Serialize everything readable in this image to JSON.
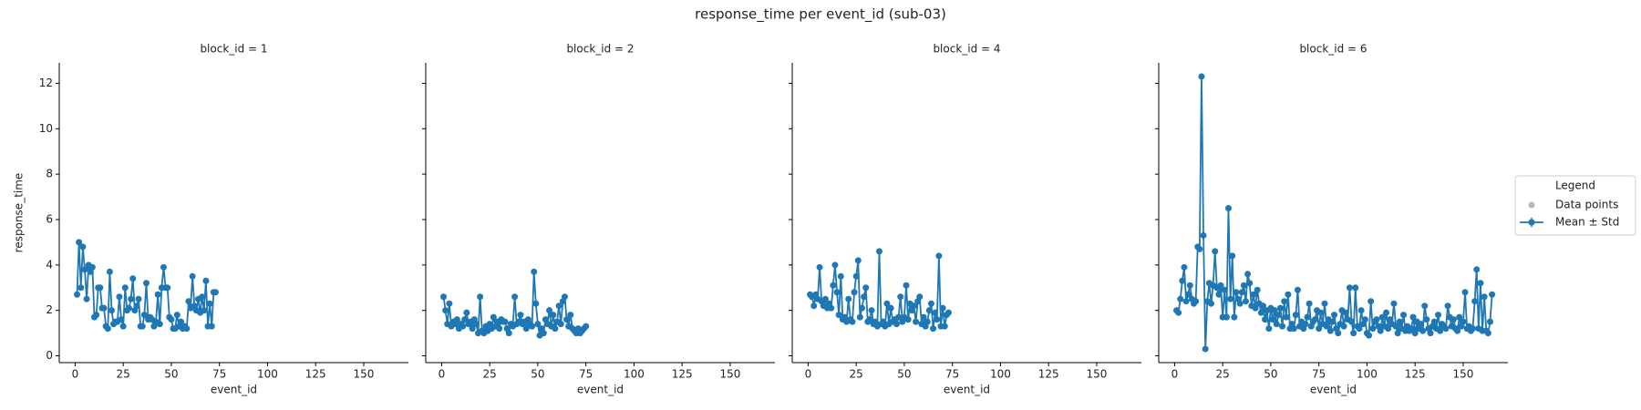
{
  "title": "response_time per event_id (sub-03)",
  "legend": {
    "title": "Legend",
    "entries": [
      {
        "name": "Data points",
        "color": "#bbbbbb"
      },
      {
        "name": "Mean ± Std",
        "color": "#1f77b4"
      }
    ]
  },
  "chart_data": [
    {
      "type": "line",
      "title": "block_id = 1",
      "x_label": "event_id",
      "y_label": "response_time",
      "x": [
        1,
        2,
        3,
        4,
        5,
        6,
        7,
        8,
        9,
        10,
        11,
        12,
        13,
        14,
        15,
        16,
        17,
        18,
        19,
        20,
        21,
        22,
        23,
        24,
        25,
        26,
        27,
        28,
        29,
        30,
        31,
        32,
        33,
        34,
        35,
        36,
        37,
        38,
        39,
        40,
        41,
        42,
        43,
        44,
        45,
        46,
        47,
        48,
        49,
        50,
        51,
        52,
        53,
        54,
        55,
        56,
        57,
        58,
        59,
        60,
        61,
        62,
        63,
        64,
        65,
        66,
        67,
        68,
        69,
        70,
        71,
        72,
        73
      ],
      "series": [
        {
          "name": "Mean ± Std",
          "color": "#1f77b4",
          "values": [
            2.7,
            5.0,
            3.0,
            4.8,
            3.8,
            2.5,
            4.0,
            3.7,
            3.9,
            1.7,
            1.8,
            3.0,
            3.0,
            2.1,
            2.1,
            1.3,
            1.2,
            3.7,
            2.0,
            1.4,
            1.5,
            1.5,
            2.6,
            1.6,
            1.3,
            3.0,
            2.0,
            2.1,
            2.5,
            3.4,
            2.0,
            2.2,
            2.5,
            1.3,
            1.3,
            1.8,
            3.2,
            1.6,
            1.7,
            1.6,
            1.3,
            1.5,
            2.7,
            1.4,
            3.0,
            3.9,
            3.0,
            3.0,
            1.7,
            1.6,
            1.2,
            1.2,
            1.8,
            1.3,
            1.5,
            1.2,
            1.3,
            1.2,
            2.4,
            2.1,
            3.5,
            2.2,
            2.0,
            2.5,
            1.9,
            2.6,
            2.0,
            3.3,
            1.3,
            2.3,
            1.3,
            2.8,
            2.8
          ]
        }
      ],
      "xlim": [
        -8.25,
        173.25
      ],
      "xticks": [
        0,
        25,
        50,
        75,
        100,
        125,
        150
      ],
      "ylim": [
        -0.3,
        12.9
      ],
      "yticks": [
        0,
        2,
        4,
        6,
        8,
        10,
        12
      ]
    },
    {
      "type": "line",
      "title": "block_id = 2",
      "x_label": "event_id",
      "x": [
        1,
        2,
        3,
        4,
        5,
        6,
        7,
        8,
        9,
        10,
        11,
        12,
        13,
        14,
        15,
        16,
        17,
        18,
        19,
        20,
        21,
        22,
        23,
        24,
        25,
        26,
        27,
        28,
        29,
        30,
        31,
        32,
        33,
        34,
        35,
        36,
        37,
        38,
        39,
        40,
        41,
        42,
        43,
        44,
        45,
        46,
        47,
        48,
        49,
        50,
        51,
        52,
        53,
        54,
        55,
        56,
        57,
        58,
        59,
        60,
        61,
        62,
        63,
        64,
        65,
        66,
        67,
        68,
        69,
        70,
        71,
        72,
        73,
        74,
        75
      ],
      "series": [
        {
          "name": "Mean ± Std",
          "color": "#1f77b4",
          "values": [
            2.6,
            2.0,
            1.4,
            2.3,
            1.3,
            1.5,
            1.4,
            1.6,
            1.2,
            1.4,
            1.3,
            1.6,
            1.9,
            1.4,
            1.5,
            1.2,
            1.6,
            1.4,
            1.0,
            2.6,
            1.1,
            1.0,
            1.3,
            1.1,
            1.4,
            1.2,
            1.7,
            1.3,
            1.5,
            1.2,
            1.6,
            1.5,
            1.5,
            1.2,
            1.0,
            1.4,
            1.3,
            2.6,
            1.4,
            1.5,
            1.8,
            1.4,
            1.5,
            1.2,
            1.6,
            1.4,
            1.3,
            3.7,
            2.3,
            1.4,
            0.9,
            1.2,
            1.0,
            1.6,
            1.4,
            2.0,
            1.3,
            1.8,
            1.2,
            1.5,
            2.2,
            1.4,
            2.4,
            2.6,
            1.6,
            1.3,
            1.8,
            1.2,
            1.1,
            1.0,
            1.2,
            1.0,
            1.1,
            1.2,
            1.3
          ]
        }
      ],
      "xlim": [
        -8.25,
        173.25
      ],
      "xticks": [
        0,
        25,
        50,
        75,
        100,
        125,
        150
      ],
      "ylim": [
        -0.3,
        12.9
      ],
      "yticks": [
        0,
        2,
        4,
        6,
        8,
        10,
        12
      ]
    },
    {
      "type": "line",
      "title": "block_id = 4",
      "x_label": "event_id",
      "x": [
        1,
        2,
        3,
        4,
        5,
        6,
        7,
        8,
        9,
        10,
        11,
        12,
        13,
        14,
        15,
        16,
        17,
        18,
        19,
        20,
        21,
        22,
        23,
        24,
        25,
        26,
        27,
        28,
        29,
        30,
        31,
        32,
        33,
        34,
        35,
        36,
        37,
        38,
        39,
        40,
        41,
        42,
        43,
        44,
        45,
        46,
        47,
        48,
        49,
        50,
        51,
        52,
        53,
        54,
        55,
        56,
        57,
        58,
        59,
        60,
        61,
        62,
        63,
        64,
        65,
        66,
        67,
        68,
        69,
        70,
        71,
        72,
        73
      ],
      "series": [
        {
          "name": "Mean ± Std",
          "color": "#1f77b4",
          "values": [
            2.7,
            2.6,
            2.2,
            2.7,
            2.5,
            3.9,
            2.4,
            2.2,
            2.5,
            2.1,
            2.3,
            2.1,
            3.1,
            4.0,
            2.8,
            1.8,
            3.5,
            1.6,
            1.7,
            1.5,
            2.5,
            1.6,
            1.5,
            2.8,
            3.5,
            4.2,
            1.7,
            2.1,
            2.6,
            3.0,
            1.5,
            1.6,
            2.0,
            1.4,
            1.5,
            1.3,
            4.6,
            1.4,
            1.5,
            1.3,
            2.3,
            1.4,
            2.1,
            1.5,
            1.6,
            1.4,
            1.7,
            2.6,
            1.5,
            1.7,
            3.1,
            1.6,
            2.3,
            2.0,
            2.2,
            1.5,
            2.4,
            2.6,
            1.4,
            1.7,
            1.3,
            1.5,
            2.0,
            2.3,
            1.2,
            1.9,
            1.6,
            4.4,
            1.3,
            2.1,
            1.3,
            1.8,
            1.9
          ]
        }
      ],
      "xlim": [
        -8.25,
        173.25
      ],
      "xticks": [
        0,
        25,
        50,
        75,
        100,
        125,
        150
      ],
      "ylim": [
        -0.3,
        12.9
      ],
      "yticks": [
        0,
        2,
        4,
        6,
        8,
        10,
        12
      ]
    },
    {
      "type": "line",
      "title": "block_id = 6",
      "x_label": "event_id",
      "x": [
        1,
        2,
        3,
        4,
        5,
        6,
        7,
        8,
        9,
        10,
        11,
        12,
        13,
        14,
        15,
        16,
        17,
        18,
        19,
        20,
        21,
        22,
        23,
        24,
        25,
        26,
        27,
        28,
        29,
        30,
        31,
        32,
        33,
        34,
        35,
        36,
        37,
        38,
        39,
        40,
        41,
        42,
        43,
        44,
        45,
        46,
        47,
        48,
        49,
        50,
        51,
        52,
        53,
        54,
        55,
        56,
        57,
        58,
        59,
        60,
        61,
        62,
        63,
        64,
        65,
        66,
        67,
        68,
        69,
        70,
        71,
        72,
        73,
        74,
        75,
        76,
        77,
        78,
        79,
        80,
        81,
        82,
        83,
        84,
        85,
        86,
        87,
        88,
        89,
        90,
        91,
        92,
        93,
        94,
        95,
        96,
        97,
        98,
        99,
        100,
        101,
        102,
        103,
        104,
        105,
        106,
        107,
        108,
        109,
        110,
        111,
        112,
        113,
        114,
        115,
        116,
        117,
        118,
        119,
        120,
        121,
        122,
        123,
        124,
        125,
        126,
        127,
        128,
        129,
        130,
        131,
        132,
        133,
        134,
        135,
        136,
        137,
        138,
        139,
        140,
        141,
        142,
        143,
        144,
        145,
        146,
        147,
        148,
        149,
        150,
        151,
        152,
        153,
        154,
        155,
        156,
        157,
        158,
        159,
        160,
        161,
        162,
        163,
        164,
        165
      ],
      "series": [
        {
          "name": "Mean ± Std",
          "color": "#1f77b4",
          "values": [
            2.0,
            1.9,
            2.5,
            3.3,
            3.9,
            2.4,
            2.7,
            3.1,
            2.5,
            2.3,
            2.4,
            4.8,
            4.7,
            12.3,
            5.3,
            0.3,
            2.4,
            3.2,
            2.3,
            3.1,
            4.6,
            3.0,
            2.7,
            3.1,
            1.7,
            2.9,
            1.7,
            6.5,
            2.5,
            4.4,
            1.7,
            2.8,
            2.5,
            2.3,
            2.8,
            3.1,
            2.4,
            3.6,
            3.2,
            2.2,
            2.7,
            2.1,
            2.9,
            2.3,
            1.9,
            2.2,
            1.6,
            2.0,
            1.2,
            2.1,
            1.6,
            2.0,
            1.4,
            1.8,
            2.1,
            1.3,
            2.4,
            1.7,
            2.7,
            1.2,
            1.4,
            1.2,
            1.8,
            2.9,
            1.3,
            1.5,
            1.2,
            1.4,
            1.7,
            2.3,
            1.3,
            1.5,
            1.6,
            2.0,
            1.2,
            1.9,
            1.4,
            2.3,
            1.3,
            1.6,
            1.1,
            1.5,
            1.8,
            1.2,
            1.0,
            1.4,
            2.0,
            1.3,
            1.9,
            1.6,
            3.0,
            1.5,
            1.0,
            3.0,
            1.3,
            1.2,
            2.0,
            1.4,
            1.6,
            1.0,
            0.9,
            2.4,
            1.2,
            1.5,
            1.6,
            1.3,
            1.1,
            1.7,
            1.3,
            1.9,
            1.2,
            1.6,
            1.4,
            2.3,
            1.3,
            1.0,
            1.5,
            1.2,
            1.8,
            1.1,
            1.3,
            1.1,
            1.2,
            1.7,
            1.0,
            1.5,
            1.2,
            1.4,
            1.1,
            2.2,
            1.6,
            1.2,
            1.0,
            1.3,
            1.5,
            1.2,
            1.8,
            1.1,
            1.4,
            1.3,
            1.2,
            2.2,
            1.7,
            1.3,
            1.6,
            1.2,
            1.1,
            1.7,
            1.3,
            1.5,
            2.8,
            1.2,
            1.3,
            1.1,
            1.2,
            2.4,
            3.8,
            1.2,
            3.2,
            1.1,
            2.6,
            1.1,
            1.0,
            1.5,
            2.7
          ]
        }
      ],
      "xlim": [
        -8.25,
        173.25
      ],
      "xticks": [
        0,
        25,
        50,
        75,
        100,
        125,
        150
      ],
      "ylim": [
        -0.3,
        12.9
      ],
      "yticks": [
        0,
        2,
        4,
        6,
        8,
        10,
        12
      ]
    }
  ]
}
